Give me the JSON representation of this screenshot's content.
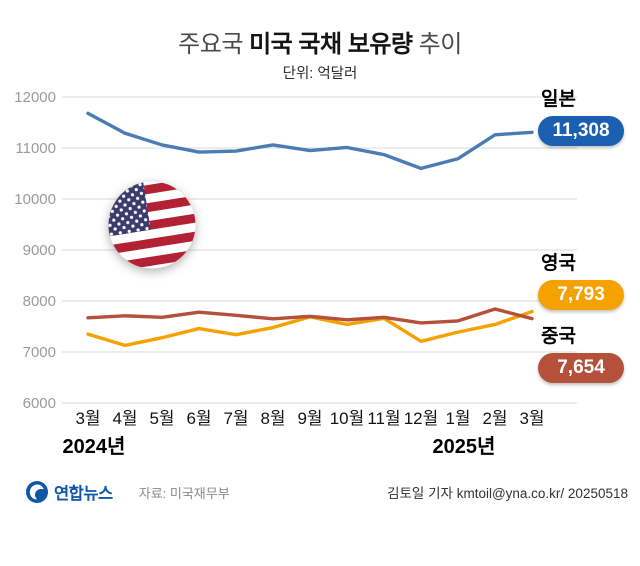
{
  "title": {
    "prefix": "주요국 ",
    "bold": "미국 국채 보유량",
    "suffix": " 추이"
  },
  "subtitle": "단위: 억달러",
  "chart_data": {
    "type": "line",
    "title": "주요국 미국 국채 보유량 추이",
    "unit_label": "단위: 억달러",
    "x": [
      "3월",
      "4월",
      "5월",
      "6월",
      "7월",
      "8월",
      "9월",
      "10월",
      "11월",
      "12월",
      "1월",
      "2월",
      "3월"
    ],
    "x_years": [
      {
        "text": "2024년",
        "x_index": 0
      },
      {
        "text": "2025년",
        "x_index": 10
      }
    ],
    "ylim": [
      6000,
      12000
    ],
    "yticks": [
      6000,
      7000,
      8000,
      9000,
      10000,
      11000,
      12000
    ],
    "grid": true,
    "legend_position": "right",
    "series": [
      {
        "name": "영국",
        "color": "#f5a200",
        "values": [
          7350,
          7130,
          7280,
          7460,
          7340,
          7480,
          7690,
          7540,
          7660,
          7210,
          7390,
          7540,
          7793
        ]
      },
      {
        "name": "중국",
        "color": "#b5503a",
        "values": [
          7670,
          7710,
          7680,
          7780,
          7720,
          7650,
          7700,
          7630,
          7680,
          7570,
          7610,
          7843,
          7654
        ]
      },
      {
        "name": "일본",
        "color": "#4c7cb4",
        "values": [
          11680,
          11290,
          11060,
          10920,
          10940,
          11060,
          10950,
          11010,
          10870,
          10600,
          10790,
          11259,
          11308
        ]
      }
    ]
  },
  "legend": [
    {
      "name": "일본",
      "value": "11,308",
      "badge_color": "#1b5fb0"
    },
    {
      "name": "영국",
      "value": "7,793",
      "badge_color": "#f5a200"
    },
    {
      "name": "중국",
      "value": "7,654",
      "badge_color": "#b5503a"
    }
  ],
  "footer": {
    "logo": "연합뉴스",
    "source": "자료: 미국재무부",
    "credit": "김토일 기자 kmtoil@yna.co.kr/ 20250518"
  }
}
